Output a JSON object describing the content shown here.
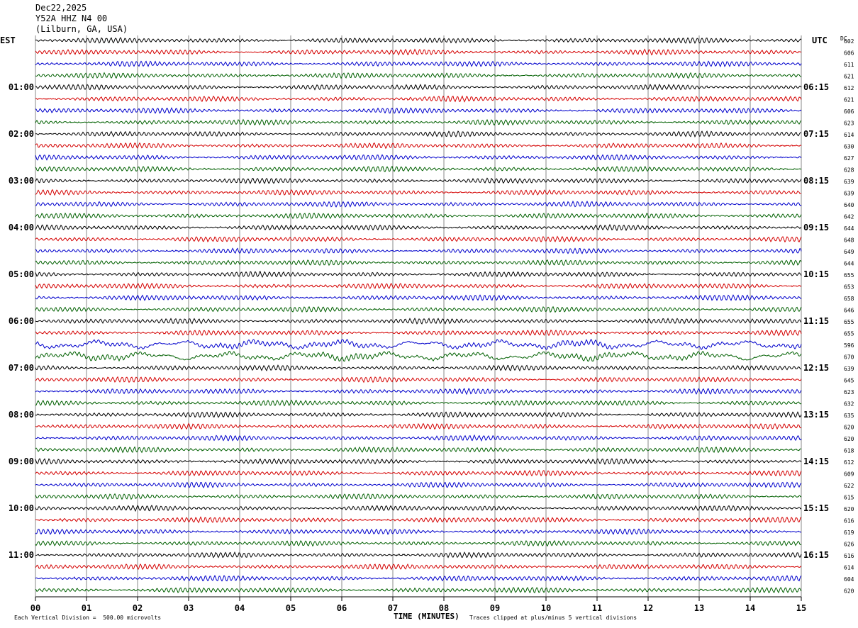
{
  "header": {
    "date": "Dec22,2025",
    "station": "Y52A HHZ N4 00",
    "location": "(Lilburn, GA, USA)"
  },
  "left_tz": "EST",
  "right_tz": "UTC",
  "dc_label": "DC",
  "footer": {
    "scale_note": "Each Vertical Division =  500.00 microvolts",
    "clip_note": "Traces clipped at plus/minus 5 vertical divisions",
    "x_title": "TIME (MINUTES)"
  },
  "colors": {
    "trace": [
      "#000000",
      "#d40000",
      "#0000cc",
      "#006000"
    ],
    "grid": "#888888"
  },
  "chart_data": {
    "type": "line",
    "title": "",
    "xlabel": "TIME (MINUTES)",
    "xlim": [
      0,
      15
    ],
    "x_ticks": [
      "00",
      "01",
      "02",
      "03",
      "04",
      "05",
      "06",
      "07",
      "08",
      "09",
      "10",
      "11",
      "12",
      "13",
      "14",
      "15"
    ],
    "rows": 48,
    "hour_labels_left": [
      "01:00",
      "02:00",
      "03:00",
      "04:00",
      "05:00",
      "06:00",
      "07:00",
      "08:00",
      "09:00",
      "10:00",
      "11:00"
    ],
    "hour_labels_right": [
      "06:15",
      "07:15",
      "08:15",
      "09:15",
      "10:15",
      "11:15",
      "12:15",
      "13:15",
      "14:15",
      "15:15",
      "16:15"
    ],
    "dc_offsets": [
      "602",
      "606",
      "611",
      "621",
      "612",
      "621",
      "606",
      "623",
      "614",
      "630",
      "627",
      "628",
      "639",
      "639",
      "640",
      "642",
      "644",
      "648",
      "649",
      "644",
      "655",
      "653",
      "658",
      "646",
      "655",
      "655",
      "596",
      "670",
      "639",
      "645",
      "623",
      "632",
      "635",
      "620",
      "620",
      "618",
      "612",
      "609",
      "622",
      "615",
      "620",
      "616",
      "619",
      "626",
      "616",
      "614",
      "604",
      "620"
    ]
  }
}
